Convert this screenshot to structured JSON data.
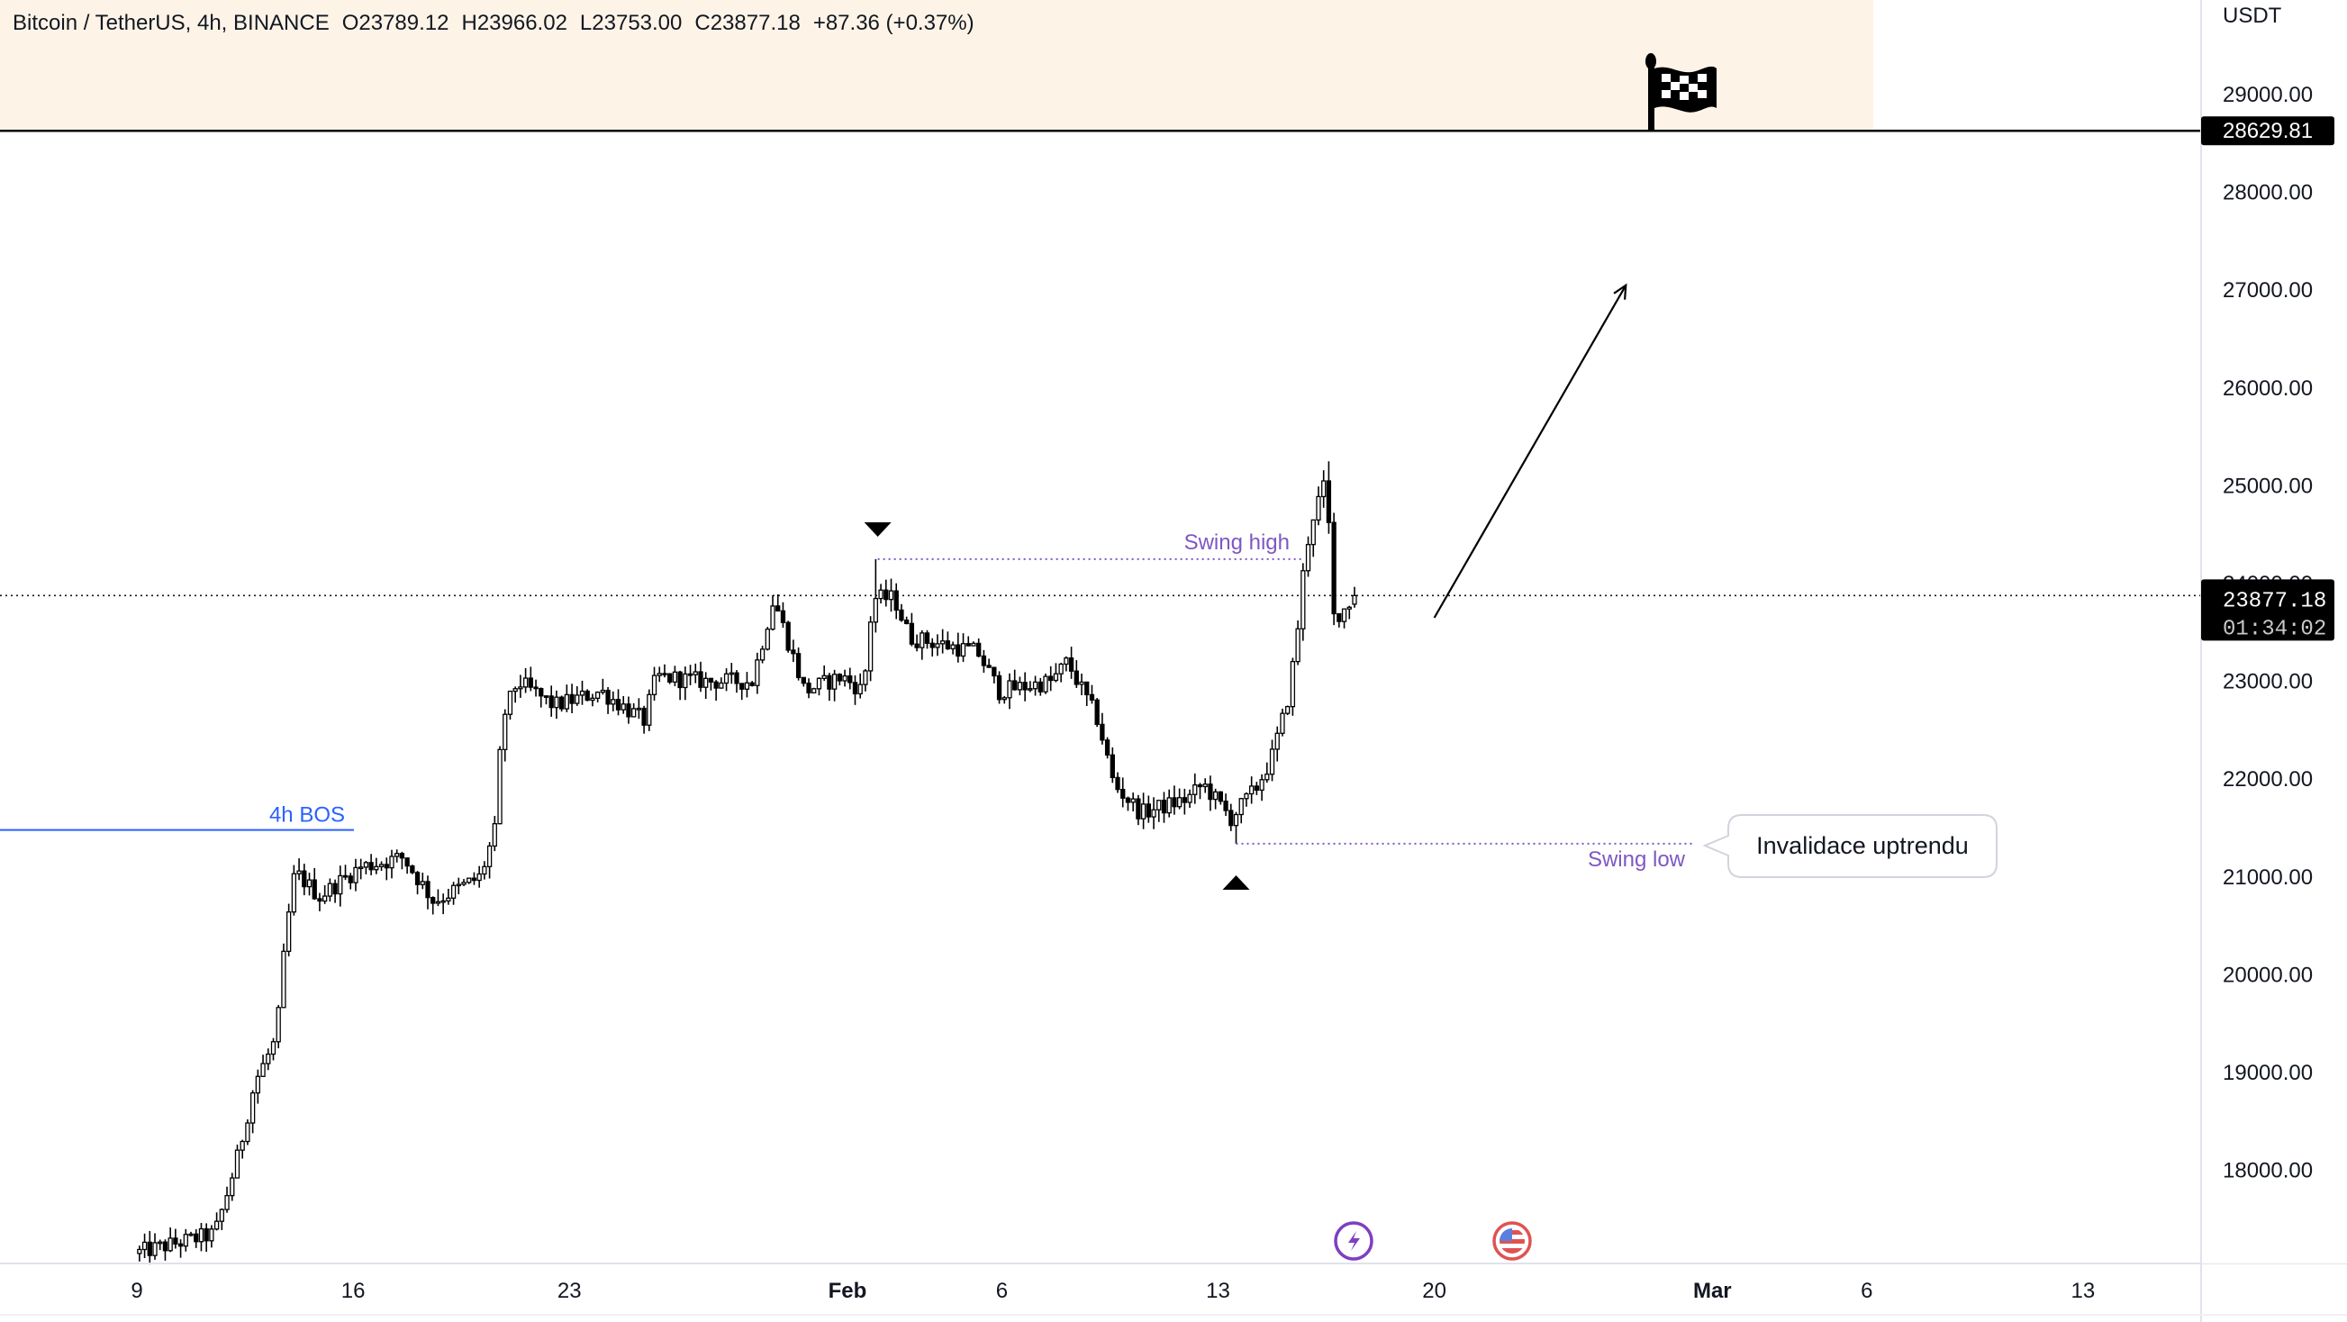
{
  "legend": {
    "symbol": "Bitcoin / TetherUS, 4h, BINANCE",
    "open": "O23789.12",
    "high": "H23966.02",
    "low": "L23753.00",
    "close": "C23877.18",
    "change": "+87.36 (+0.37%)"
  },
  "price_axis": {
    "currency": "USDT",
    "target_price": "28629.81",
    "current_price": "23877.18",
    "countdown": "01:34:02"
  },
  "annotations": {
    "bos_label": "4h BOS",
    "swing_high_label": "Swing high",
    "swing_low_label": "Swing low",
    "callout": "Invalidace uptrendu"
  },
  "icons": [
    "checkered-flag-icon",
    "lightning-event-icon",
    "us-flag-event-icon",
    "triangle-down-icon",
    "triangle-up-icon"
  ],
  "colors": {
    "header_band": "#fdf4e7",
    "bos": "#2962ff",
    "swing": "#7e57c2",
    "lightning": "#7e3fbf",
    "us_flag": "#e05252"
  },
  "chart_data": {
    "type": "candlestick",
    "title": "Bitcoin / TetherUS, 4h, BINANCE",
    "x_unit": "days since Jan 9",
    "y_unit": "USDT",
    "ylim": [
      17000,
      29800
    ],
    "y_ticks": [
      29000,
      28000,
      27000,
      26000,
      25000,
      24000,
      23000,
      22000,
      21000,
      20000,
      19000,
      18000
    ],
    "y_tick_labels": [
      "29000.00",
      "28000.00",
      "27000.00",
      "26000.00",
      "25000.00",
      "24000.00",
      "23000.00",
      "22000.00",
      "21000.00",
      "20000.00",
      "19000.00",
      "18000.00"
    ],
    "x_ticks": [
      {
        "day": 0,
        "label": "9"
      },
      {
        "day": 7,
        "label": "16"
      },
      {
        "day": 14,
        "label": "23"
      },
      {
        "day": 23,
        "label": "Feb",
        "bold": true
      },
      {
        "day": 28,
        "label": "6"
      },
      {
        "day": 35,
        "label": "13"
      },
      {
        "day": 42,
        "label": "20"
      },
      {
        "day": 51,
        "label": "Mar",
        "bold": true
      },
      {
        "day": 56,
        "label": "6"
      },
      {
        "day": 63,
        "label": "13"
      }
    ],
    "close_path": [
      [
        0,
        17150
      ],
      [
        2.6,
        17350
      ],
      [
        2.9,
        17650
      ],
      [
        3.4,
        18200
      ],
      [
        3.9,
        18900
      ],
      [
        4.6,
        19350
      ],
      [
        4.9,
        20400
      ],
      [
        5.2,
        21050
      ],
      [
        6.0,
        20800
      ],
      [
        7.3,
        21100
      ],
      [
        8.7,
        21200
      ],
      [
        9.7,
        20750
      ],
      [
        11.2,
        21000
      ],
      [
        11.7,
        21500
      ],
      [
        11.9,
        22600
      ],
      [
        12.4,
        23000
      ],
      [
        13.6,
        22750
      ],
      [
        15.1,
        22900
      ],
      [
        16.5,
        22600
      ],
      [
        16.9,
        23050
      ],
      [
        18.5,
        23000
      ],
      [
        20.0,
        23000
      ],
      [
        20.7,
        23850
      ],
      [
        21.7,
        22900
      ],
      [
        22.9,
        23050
      ],
      [
        23.6,
        22900
      ],
      [
        23.9,
        23850
      ],
      [
        24.6,
        23850
      ],
      [
        25.1,
        23450
      ],
      [
        27.3,
        23300
      ],
      [
        28.0,
        22900
      ],
      [
        29.7,
        23000
      ],
      [
        30.2,
        23200
      ],
      [
        31.2,
        22600
      ],
      [
        31.7,
        21950
      ],
      [
        32.6,
        21650
      ],
      [
        34.1,
        21800
      ],
      [
        34.6,
        21950
      ],
      [
        35.5,
        21600
      ],
      [
        36.3,
        21900
      ],
      [
        36.8,
        22200
      ],
      [
        37.3,
        22750
      ],
      [
        37.6,
        23350
      ],
      [
        37.9,
        24300
      ],
      [
        38.2,
        24750
      ],
      [
        38.6,
        25050
      ],
      [
        38.8,
        23650
      ],
      [
        39.2,
        23750
      ],
      [
        39.5,
        23877.18
      ]
    ],
    "wick_extremes": [
      {
        "day": 23.9,
        "type": "high",
        "price": 24250
      },
      {
        "day": 35.5,
        "type": "low",
        "price": 21340
      },
      {
        "day": 38.6,
        "type": "high",
        "price": 25250
      }
    ],
    "last_candle": {
      "open": 23789.12,
      "high": 23966.02,
      "low": 23753.0,
      "close": 23877.18
    },
    "levels": {
      "target": 28629.81,
      "current": 23877.18,
      "bos": 21480,
      "swing_high": 24250,
      "swing_low": 21340
    },
    "swing_high_day": 23.9,
    "swing_low_day": 35.5,
    "projection_arrow": {
      "from": [
        42,
        23650
      ],
      "to": [
        48.2,
        27050
      ]
    }
  }
}
